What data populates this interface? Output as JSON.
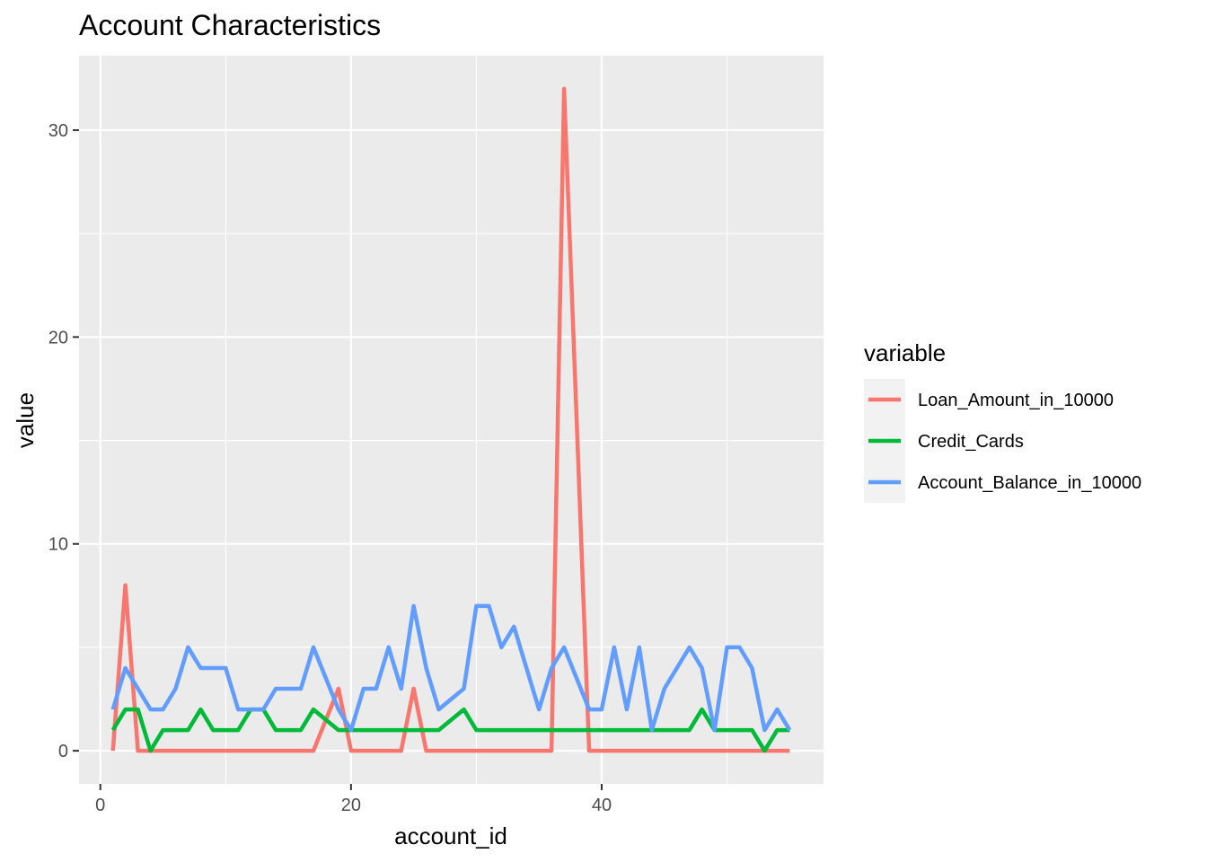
{
  "chart_data": {
    "type": "line",
    "title": "Account Characteristics",
    "xlabel": "account_id",
    "ylabel": "value",
    "xlim": [
      -1.7,
      57.7
    ],
    "ylim": [
      -1.6,
      33.6
    ],
    "x_ticks": [
      0,
      20,
      40
    ],
    "y_ticks": [
      0,
      10,
      20,
      30
    ],
    "legend_title": "variable",
    "legend_position": "right",
    "grid": true,
    "x": [
      1,
      2,
      3,
      4,
      5,
      6,
      7,
      8,
      9,
      10,
      11,
      12,
      13,
      14,
      15,
      16,
      17,
      18,
      19,
      20,
      21,
      22,
      23,
      24,
      25,
      26,
      27,
      28,
      29,
      30,
      31,
      32,
      33,
      34,
      35,
      36,
      37,
      38,
      39,
      40,
      41,
      42,
      43,
      44,
      45,
      46,
      47,
      48,
      49,
      50,
      51,
      52,
      53,
      54,
      55
    ],
    "series": [
      {
        "name": "Loan_Amount_in_10000",
        "color": "#F8766D",
        "values": [
          0,
          8,
          0,
          0,
          0,
          0,
          0,
          0,
          0,
          0,
          0,
          0,
          0,
          0,
          0,
          0,
          0,
          1.5,
          3,
          0,
          0,
          0,
          0,
          0,
          3,
          0,
          0,
          0,
          0,
          0,
          0,
          0,
          0,
          0,
          0,
          0,
          32,
          16,
          0,
          0,
          0,
          0,
          0,
          0,
          0,
          0,
          0,
          0,
          0,
          0,
          0,
          0,
          0,
          0,
          0
        ]
      },
      {
        "name": "Credit_Cards",
        "color": "#00BA38",
        "values": [
          1,
          2,
          2,
          0,
          1,
          1,
          1,
          2,
          1,
          1,
          1,
          2,
          2,
          1,
          1,
          1,
          2,
          1.5,
          1,
          1,
          1,
          1,
          1,
          1,
          1,
          1,
          1,
          1.5,
          2,
          1,
          1,
          1,
          1,
          1,
          1,
          1,
          1,
          1,
          1,
          1,
          1,
          1,
          1,
          1,
          1,
          1,
          1,
          2,
          1,
          1,
          1,
          1,
          0,
          1,
          1
        ]
      },
      {
        "name": "Account_Balance_in_10000",
        "color": "#619CFF",
        "values": [
          2,
          4,
          3,
          2,
          2,
          3,
          5,
          4,
          4,
          4,
          2,
          2,
          2,
          3,
          3,
          3,
          5,
          3.5,
          2,
          1,
          3,
          3,
          5,
          3,
          7,
          4,
          2,
          2.5,
          3,
          7,
          7,
          5,
          6,
          4,
          2,
          4,
          5,
          3.5,
          2,
          2,
          5,
          2,
          5,
          1,
          3,
          4,
          5,
          4,
          1,
          5,
          5,
          4,
          1,
          2,
          1
        ]
      }
    ]
  }
}
